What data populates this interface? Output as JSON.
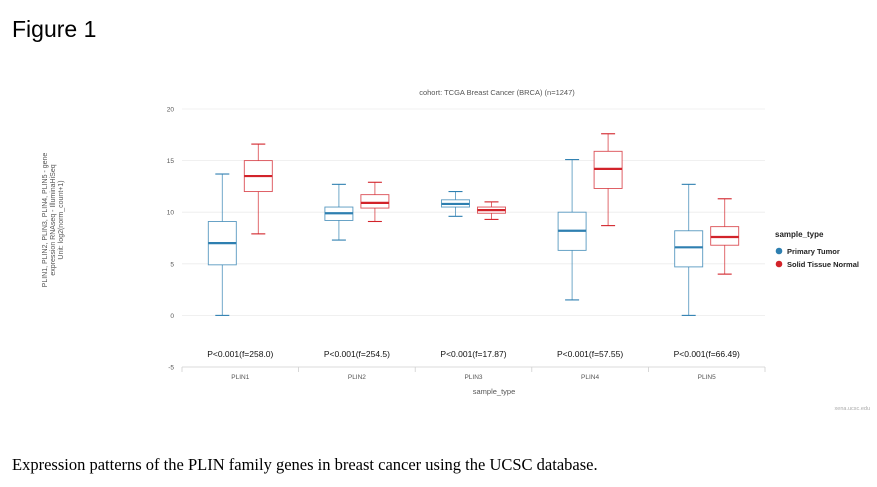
{
  "figure_title": "Figure 1",
  "caption": "Expression patterns of the PLIN family genes in breast cancer using the UCSC database.",
  "chart_data": {
    "type": "box",
    "title": "cohort: TCGA Breast Cancer (BRCA) (n=1247)",
    "ylabel_lines": [
      "PLIN1, PLIN2, PLIN3, PLIN4, PLIN5 - gene",
      "expression RNAseq - IlluminaHiSeq",
      "Unit: log2(norm_count+1)"
    ],
    "xlabel": "sample_type",
    "ylim": [
      -5,
      20
    ],
    "yticks": [
      -5,
      0,
      5,
      10,
      15,
      20
    ],
    "grid": true,
    "legend": {
      "title": "sample_type",
      "position": "right",
      "entries": [
        {
          "name": "Primary Tumor",
          "color": "#2e7fb0"
        },
        {
          "name": "Solid Tissue Normal",
          "color": "#d2232a"
        }
      ]
    },
    "categories": [
      "PLIN1",
      "PLIN2",
      "PLIN3",
      "PLIN4",
      "PLIN5"
    ],
    "pvalues": [
      "P<0.001(f=258.0)",
      "P<0.001(f=254.5)",
      "P<0.001(f=17.87)",
      "P<0.001(f=57.55)",
      "P<0.001(f=66.49)"
    ],
    "series": [
      {
        "name": "Primary Tumor",
        "color": "#2e7fb0",
        "boxes": [
          {
            "min": 0.0,
            "q1": 4.9,
            "median": 7.0,
            "q3": 9.1,
            "max": 13.7
          },
          {
            "min": 7.3,
            "q1": 9.2,
            "median": 9.9,
            "q3": 10.5,
            "max": 12.7
          },
          {
            "min": 9.6,
            "q1": 10.5,
            "median": 10.8,
            "q3": 11.2,
            "max": 12.0
          },
          {
            "min": 1.5,
            "q1": 6.3,
            "median": 8.2,
            "q3": 10.0,
            "max": 15.1
          },
          {
            "min": 0.0,
            "q1": 4.7,
            "median": 6.6,
            "q3": 8.2,
            "max": 12.7
          }
        ]
      },
      {
        "name": "Solid Tissue Normal",
        "color": "#d2232a",
        "boxes": [
          {
            "min": 7.9,
            "q1": 12.0,
            "median": 13.5,
            "q3": 15.0,
            "max": 16.6
          },
          {
            "min": 9.1,
            "q1": 10.4,
            "median": 10.9,
            "q3": 11.7,
            "max": 12.9
          },
          {
            "min": 9.3,
            "q1": 9.9,
            "median": 10.2,
            "q3": 10.5,
            "max": 11.0
          },
          {
            "min": 8.7,
            "q1": 12.3,
            "median": 14.2,
            "q3": 15.9,
            "max": 17.6
          },
          {
            "min": 4.0,
            "q1": 6.8,
            "median": 7.6,
            "q3": 8.6,
            "max": 11.3
          }
        ]
      }
    ],
    "footer": "xena.ucsc.edu"
  }
}
